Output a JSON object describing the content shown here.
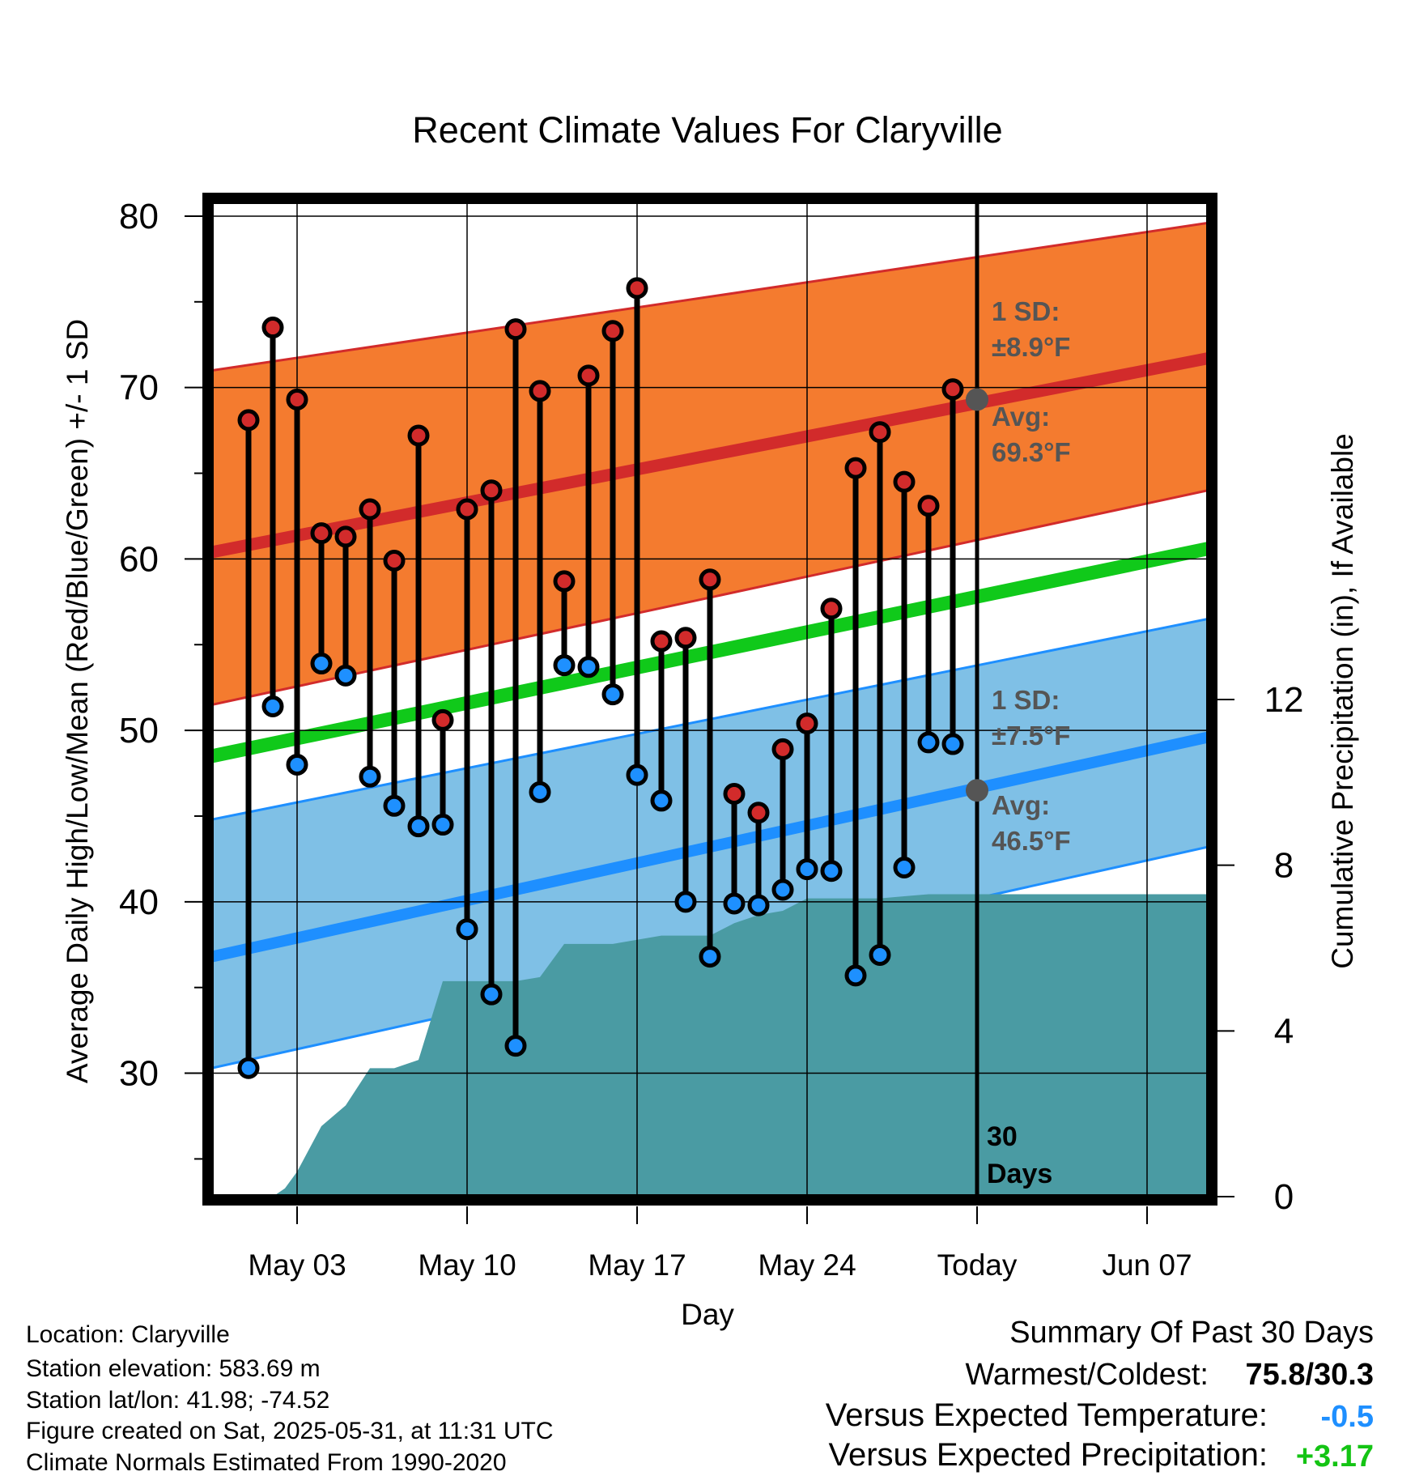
{
  "chart_data": {
    "type": "line",
    "title": "Recent Climate Values For Claryville",
    "xlabel": "Day",
    "ylabel": "Average Daily High/Low/Mean (Red/Blue/Green) +/- 1 SD",
    "y2label": "Cumulative Precipitation (in), If Available",
    "xlim": [
      -0.5,
      40.5
    ],
    "ylim": [
      22.8,
      80.8
    ],
    "y2lim": [
      0,
      24
    ],
    "x_ticks": [
      3,
      10,
      17,
      24,
      31,
      38
    ],
    "x_tick_labels": [
      "May 03",
      "May 10",
      "May 17",
      "May 24",
      "Today",
      "Jun 07"
    ],
    "y_ticks": [
      30,
      40,
      50,
      60,
      70,
      80
    ],
    "y_tick_labels": [
      "30",
      "40",
      "50",
      "60",
      "70",
      "80"
    ],
    "y2_ticks": [
      0,
      4,
      8,
      12
    ],
    "y2_tick_labels": [
      "0",
      "4",
      "8",
      "12"
    ],
    "grid": true,
    "today_x": 31,
    "today_label": "30\nDays",
    "normals": {
      "high_avg": [
        60.4,
        71.7
      ],
      "high_sd_upper": [
        71.0,
        79.6
      ],
      "high_sd_lower": [
        51.5,
        64.0
      ],
      "mean_avg": [
        48.5,
        60.6
      ],
      "low_avg": [
        36.8,
        49.6
      ],
      "low_sd_upper": [
        44.8,
        56.5
      ],
      "low_sd_lower": [
        30.3,
        43.2
      ]
    },
    "normals_x": [
      -0.5,
      40.5
    ],
    "annotations": {
      "high_sd": "1 SD:",
      "high_sd_value": "±8.9°F",
      "high_avg": "Avg:",
      "high_avg_value": "69.3°F",
      "low_sd": "1 SD:",
      "low_sd_value": "±7.5°F",
      "low_avg": "Avg:",
      "low_avg_value": "46.5°F",
      "today_high_avg": 69.3,
      "today_low_avg": 46.5
    },
    "days": [
      1,
      2,
      3,
      4,
      5,
      6,
      7,
      8,
      9,
      10,
      11,
      12,
      13,
      14,
      15,
      16,
      17,
      18,
      19,
      20,
      21,
      22,
      23,
      24,
      25,
      26,
      27,
      28,
      29,
      30
    ],
    "highs": [
      68.1,
      73.5,
      69.3,
      61.5,
      61.3,
      62.9,
      59.9,
      67.2,
      50.6,
      62.9,
      64.0,
      73.4,
      69.8,
      58.7,
      70.7,
      73.3,
      75.8,
      55.2,
      55.4,
      58.8,
      46.3,
      45.2,
      48.9,
      50.4,
      57.1,
      65.3,
      67.4,
      64.5,
      63.1,
      69.9
    ],
    "lows": [
      30.3,
      51.4,
      48.0,
      53.9,
      53.2,
      47.3,
      45.6,
      44.4,
      44.5,
      38.4,
      34.6,
      31.6,
      46.4,
      53.8,
      53.7,
      52.1,
      47.4,
      45.9,
      40.0,
      36.8,
      39.9,
      39.8,
      40.7,
      41.9,
      41.8,
      35.7,
      36.9,
      42.0,
      49.3,
      49.2
    ],
    "precip_x": [
      0,
      2,
      2.5,
      3,
      4,
      5,
      6,
      7,
      8,
      9,
      10,
      11,
      12,
      13,
      14,
      15,
      16,
      17,
      18,
      19,
      20,
      21,
      22,
      23,
      24,
      25,
      26,
      27,
      28,
      29,
      30,
      40.5
    ],
    "precip_cumulative": [
      0,
      0,
      0.2,
      0.6,
      1.7,
      2.2,
      3.1,
      3.1,
      3.3,
      5.2,
      5.2,
      5.2,
      5.2,
      5.3,
      6.1,
      6.1,
      6.1,
      6.2,
      6.3,
      6.3,
      6.3,
      6.6,
      6.8,
      6.9,
      7.2,
      7.2,
      7.2,
      7.2,
      7.25,
      7.3,
      7.3,
      7.3
    ]
  },
  "colors": {
    "high_band": "#f47b2f",
    "high_avg": "#d22b2b",
    "low_band": "#7fc0e6",
    "low_avg": "#1e8fff",
    "mean": "#10c91a",
    "precip": "#4a9ba3",
    "high_dot": "#d22b2b",
    "low_dot": "#1e90ff",
    "annotation": "#555555",
    "positive": "#14c414",
    "negative": "#1e8fff"
  },
  "footer": {
    "location": "Location: Claryville",
    "elevation": "Station elevation: 583.69 m",
    "latlon": "Station lat/lon: 41.98; -74.52",
    "created": "Figure created on Sat, 2025-05-31, at 11:31 UTC",
    "normals": "Climate Normals Estimated From 1990-2020"
  },
  "summary": {
    "title": "Summary Of Past 30 Days",
    "warmest_label": "Warmest/Coldest:",
    "warmest_value": "75.8/30.3",
    "temp_label": "Versus Expected Temperature:",
    "temp_value": "-0.5",
    "precip_label": "Versus Expected Precipitation:",
    "precip_value": "+3.17"
  }
}
